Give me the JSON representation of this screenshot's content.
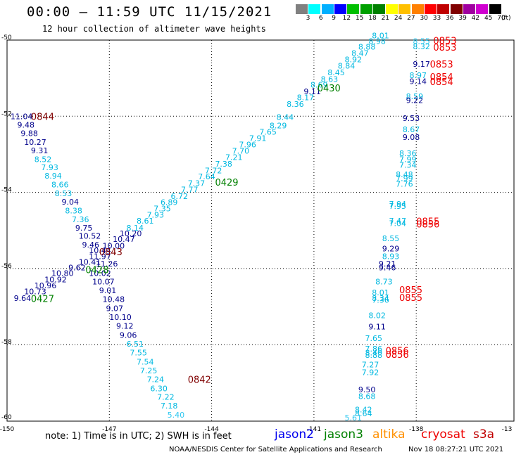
{
  "title": "00:00 – 11:59 UTC 11/15/2021",
  "subtitle": "12 hour collection of altimeter wave heights",
  "legend": {
    "labels": [
      "3",
      "6",
      "9",
      "12",
      "15",
      "18",
      "21",
      "24",
      "27",
      "30",
      "33",
      "36",
      "39",
      "42",
      "45",
      "70"
    ],
    "unit": "(ft)",
    "colors": [
      "#808080",
      "#00ffff",
      "#00b0ff",
      "#0000ff",
      "#00c000",
      "#00a000",
      "#008000",
      "#ffff00",
      "#ffc000",
      "#ff8000",
      "#ff0000",
      "#c00000",
      "#800000",
      "#a000a0",
      "#d000d0",
      "#000000"
    ]
  },
  "axes": {
    "x_ticks": [
      "-150",
      "-147",
      "-144",
      "-141",
      "-138",
      "-13"
    ],
    "y_ticks": [
      "-50",
      "-52",
      "-54",
      "-56",
      "-58",
      "-60"
    ]
  },
  "note": "note: 1) Time is in UTC; 2) SWH is in feet",
  "satellites": [
    {
      "name": "jason2",
      "color": "#0000ee"
    },
    {
      "name": "jason3",
      "color": "#008000"
    },
    {
      "name": "altika",
      "color": "#ff9000"
    },
    {
      "name": "cryosat",
      "color": "#ee0000"
    },
    {
      "name": "s3a",
      "color": "#c00000"
    }
  ],
  "footer": "NOAA/NESDIS Center for Satellite Applications and Research",
  "footer_time": "Nov 18 08:27:21 UTC 2021",
  "colors": {
    "light_blue": "#00b8e0",
    "dark_blue": "#00008b",
    "cyan": "#30c8f0",
    "green": "#008000",
    "red": "#ee0000",
    "maroon": "#800000"
  },
  "readings": [
    {
      "t": "8.01",
      "c": "light_blue",
      "lon": -139.3,
      "lat": -49.95
    },
    {
      "t": "8.98",
      "c": "light_blue",
      "lon": -139.4,
      "lat": -50.1
    },
    {
      "t": "8.88",
      "c": "light_blue",
      "lon": -139.7,
      "lat": -50.25
    },
    {
      "t": "8.47",
      "c": "light_blue",
      "lon": -139.9,
      "lat": -50.42
    },
    {
      "t": "8.92",
      "c": "light_blue",
      "lon": -140.1,
      "lat": -50.58
    },
    {
      "t": "8.84",
      "c": "light_blue",
      "lon": -140.3,
      "lat": -50.75
    },
    {
      "t": "8.45",
      "c": "light_blue",
      "lon": -140.6,
      "lat": -50.92
    },
    {
      "t": "8.63",
      "c": "light_blue",
      "lon": -140.8,
      "lat": -51.1
    },
    {
      "t": "8.69",
      "c": "light_blue",
      "lon": -141.1,
      "lat": -51.25
    },
    {
      "t": "9.11",
      "c": "dark_blue",
      "lon": -141.3,
      "lat": -51.42
    },
    {
      "t": "8.17",
      "c": "light_blue",
      "lon": -141.5,
      "lat": -51.58
    },
    {
      "t": "8.36",
      "c": "light_blue",
      "lon": -141.8,
      "lat": -51.75
    },
    {
      "t": "8.44",
      "c": "light_blue",
      "lon": -142.1,
      "lat": -52.1
    },
    {
      "t": "8.29",
      "c": "light_blue",
      "lon": -142.3,
      "lat": -52.32
    },
    {
      "t": "7.65",
      "c": "light_blue",
      "lon": -142.6,
      "lat": -52.48
    },
    {
      "t": "7.91",
      "c": "light_blue",
      "lon": -142.9,
      "lat": -52.65
    },
    {
      "t": "7.96",
      "c": "light_blue",
      "lon": -143.2,
      "lat": -52.82
    },
    {
      "t": "7.70",
      "c": "light_blue",
      "lon": -143.4,
      "lat": -52.98
    },
    {
      "t": "7.21",
      "c": "light_blue",
      "lon": -143.6,
      "lat": -53.15
    },
    {
      "t": "7.38",
      "c": "light_blue",
      "lon": -143.9,
      "lat": -53.32
    },
    {
      "t": "7.72",
      "c": "light_blue",
      "lon": -144.2,
      "lat": -53.5
    },
    {
      "t": "7.64",
      "c": "light_blue",
      "lon": -144.4,
      "lat": -53.66
    },
    {
      "t": "7.37",
      "c": "light_blue",
      "lon": -144.7,
      "lat": -53.83
    },
    {
      "t": "7.77",
      "c": "light_blue",
      "lon": -144.9,
      "lat": -54.0
    },
    {
      "t": "6.72",
      "c": "light_blue",
      "lon": -145.2,
      "lat": -54.17
    },
    {
      "t": "6.89",
      "c": "light_blue",
      "lon": -145.5,
      "lat": -54.33
    },
    {
      "t": "7.35",
      "c": "light_blue",
      "lon": -145.7,
      "lat": -54.5
    },
    {
      "t": "7.93",
      "c": "light_blue",
      "lon": -145.9,
      "lat": -54.66
    },
    {
      "t": "8.61",
      "c": "light_blue",
      "lon": -146.2,
      "lat": -54.82
    },
    {
      "t": "8.14",
      "c": "light_blue",
      "lon": -146.5,
      "lat": -55.0
    },
    {
      "t": "10.20",
      "c": "dark_blue",
      "lon": -146.7,
      "lat": -55.15
    },
    {
      "t": "10.47",
      "c": "dark_blue",
      "lon": -146.9,
      "lat": -55.3
    },
    {
      "t": "10.00",
      "c": "dark_blue",
      "lon": -147.2,
      "lat": -55.48
    },
    {
      "t": "11.04",
      "c": "dark_blue",
      "lon": -149.9,
      "lat": -52.08
    },
    {
      "t": "9.48",
      "c": "dark_blue",
      "lon": -149.7,
      "lat": -52.3
    },
    {
      "t": "9.88",
      "c": "dark_blue",
      "lon": -149.6,
      "lat": -52.52
    },
    {
      "t": "10.27",
      "c": "dark_blue",
      "lon": -149.5,
      "lat": -52.75
    },
    {
      "t": "9.31",
      "c": "dark_blue",
      "lon": -149.3,
      "lat": -52.97
    },
    {
      "t": "8.52",
      "c": "light_blue",
      "lon": -149.2,
      "lat": -53.2
    },
    {
      "t": "7.93",
      "c": "light_blue",
      "lon": -149.0,
      "lat": -53.42
    },
    {
      "t": "8.94",
      "c": "light_blue",
      "lon": -148.9,
      "lat": -53.64
    },
    {
      "t": "8.66",
      "c": "light_blue",
      "lon": -148.7,
      "lat": -53.87
    },
    {
      "t": "8.53",
      "c": "light_blue",
      "lon": -148.6,
      "lat": -54.1
    },
    {
      "t": "9.04",
      "c": "dark_blue",
      "lon": -148.4,
      "lat": -54.32
    },
    {
      "t": "8.38",
      "c": "light_blue",
      "lon": -148.3,
      "lat": -54.55
    },
    {
      "t": "7.36",
      "c": "light_blue",
      "lon": -148.1,
      "lat": -54.78
    },
    {
      "t": "9.75",
      "c": "dark_blue",
      "lon": -148.0,
      "lat": -55.0
    },
    {
      "t": "10.52",
      "c": "dark_blue",
      "lon": -147.9,
      "lat": -55.22
    },
    {
      "t": "9.46",
      "c": "dark_blue",
      "lon": -147.8,
      "lat": -55.45
    },
    {
      "t": "10.44",
      "c": "dark_blue",
      "lon": -147.6,
      "lat": -55.6
    },
    {
      "t": "11.97",
      "c": "dark_blue",
      "lon": -147.6,
      "lat": -55.75
    },
    {
      "t": "10.41",
      "c": "dark_blue",
      "lon": -147.9,
      "lat": -55.9
    },
    {
      "t": "9.62",
      "c": "dark_blue",
      "lon": -148.2,
      "lat": -56.05
    },
    {
      "t": "10.80",
      "c": "dark_blue",
      "lon": -148.7,
      "lat": -56.2
    },
    {
      "t": "10.92",
      "c": "dark_blue",
      "lon": -148.9,
      "lat": -56.36
    },
    {
      "t": "10.96",
      "c": "dark_blue",
      "lon": -149.2,
      "lat": -56.52
    },
    {
      "t": "10.73",
      "c": "dark_blue",
      "lon": -149.5,
      "lat": -56.68
    },
    {
      "t": "9.64",
      "c": "dark_blue",
      "lon": -149.8,
      "lat": -56.85
    },
    {
      "t": "11.26",
      "c": "dark_blue",
      "lon": -147.4,
      "lat": -55.95
    },
    {
      "t": "10.02",
      "c": "dark_blue",
      "lon": -147.6,
      "lat": -56.2
    },
    {
      "t": "10.07",
      "c": "dark_blue",
      "lon": -147.5,
      "lat": -56.42
    },
    {
      "t": "9.01",
      "c": "dark_blue",
      "lon": -147.3,
      "lat": -56.65
    },
    {
      "t": "10.48",
      "c": "dark_blue",
      "lon": -147.2,
      "lat": -56.88
    },
    {
      "t": "9.07",
      "c": "dark_blue",
      "lon": -147.1,
      "lat": -57.12
    },
    {
      "t": "10.10",
      "c": "dark_blue",
      "lon": -147.0,
      "lat": -57.35
    },
    {
      "t": "9.12",
      "c": "dark_blue",
      "lon": -146.8,
      "lat": -57.58
    },
    {
      "t": "9.06",
      "c": "dark_blue",
      "lon": -146.7,
      "lat": -57.82
    },
    {
      "t": "6.51",
      "c": "light_blue",
      "lon": -146.5,
      "lat": -58.05
    },
    {
      "t": "7.55",
      "c": "light_blue",
      "lon": -146.4,
      "lat": -58.28
    },
    {
      "t": "7.54",
      "c": "light_blue",
      "lon": -146.2,
      "lat": -58.52
    },
    {
      "t": "7.25",
      "c": "light_blue",
      "lon": -146.1,
      "lat": -58.75
    },
    {
      "t": "7.24",
      "c": "light_blue",
      "lon": -145.9,
      "lat": -58.98
    },
    {
      "t": "6.30",
      "c": "light_blue",
      "lon": -145.8,
      "lat": -59.22
    },
    {
      "t": "7.22",
      "c": "light_blue",
      "lon": -145.6,
      "lat": -59.45
    },
    {
      "t": "7.18",
      "c": "light_blue",
      "lon": -145.5,
      "lat": -59.68
    },
    {
      "t": "5.40",
      "c": "cyan",
      "lon": -145.3,
      "lat": -59.92
    },
    {
      "t": "8.55",
      "c": "cyan",
      "lon": -138.1,
      "lat": -50.1
    },
    {
      "t": "8.32",
      "c": "light_blue",
      "lon": -138.1,
      "lat": -50.24
    },
    {
      "t": "9.17",
      "c": "dark_blue",
      "lon": -138.1,
      "lat": -50.7
    },
    {
      "t": "8.97",
      "c": "light_blue",
      "lon": -138.2,
      "lat": -51.0
    },
    {
      "t": "9.14",
      "c": "dark_blue",
      "lon": -138.2,
      "lat": -51.15
    },
    {
      "t": "8.59",
      "c": "light_blue",
      "lon": -138.3,
      "lat": -51.55
    },
    {
      "t": "9.22",
      "c": "dark_blue",
      "lon": -138.3,
      "lat": -51.65
    },
    {
      "t": "9.53",
      "c": "dark_blue",
      "lon": -138.4,
      "lat": -52.12
    },
    {
      "t": "8.67",
      "c": "light_blue",
      "lon": -138.4,
      "lat": -52.42
    },
    {
      "t": "9.08",
      "c": "dark_blue",
      "lon": -138.4,
      "lat": -52.62
    },
    {
      "t": "8.36",
      "c": "light_blue",
      "lon": -138.5,
      "lat": -53.05
    },
    {
      "t": "7.99",
      "c": "light_blue",
      "lon": -138.5,
      "lat": -53.2
    },
    {
      "t": "7.34",
      "c": "light_blue",
      "lon": -138.5,
      "lat": -53.35
    },
    {
      "t": "8.48",
      "c": "light_blue",
      "lon": -138.6,
      "lat": -53.6
    },
    {
      "t": "7.99",
      "c": "light_blue",
      "lon": -138.6,
      "lat": -53.7
    },
    {
      "t": "7.76",
      "c": "light_blue",
      "lon": -138.6,
      "lat": -53.85
    },
    {
      "t": "7.94",
      "c": "light_blue",
      "lon": -138.8,
      "lat": -54.38
    },
    {
      "t": "7.95",
      "c": "light_blue",
      "lon": -138.8,
      "lat": -54.43
    },
    {
      "t": "7.47",
      "c": "light_blue",
      "lon": -138.8,
      "lat": -54.82
    },
    {
      "t": "7.04",
      "c": "light_blue",
      "lon": -138.8,
      "lat": -54.88
    },
    {
      "t": "8.55",
      "c": "light_blue",
      "lon": -139.0,
      "lat": -55.28
    },
    {
      "t": "9.29",
      "c": "dark_blue",
      "lon": -139.0,
      "lat": -55.55
    },
    {
      "t": "8.93",
      "c": "light_blue",
      "lon": -139.0,
      "lat": -55.75
    },
    {
      "t": "9.21",
      "c": "dark_blue",
      "lon": -139.1,
      "lat": -55.95
    },
    {
      "t": "9.46",
      "c": "dark_blue",
      "lon": -139.1,
      "lat": -56.05
    },
    {
      "t": "8.73",
      "c": "light_blue",
      "lon": -139.2,
      "lat": -56.42
    },
    {
      "t": "8.01",
      "c": "light_blue",
      "lon": -139.3,
      "lat": -56.7
    },
    {
      "t": "8.34",
      "c": "light_blue",
      "lon": -139.3,
      "lat": -56.85
    },
    {
      "t": "7.36",
      "c": "light_blue",
      "lon": -139.3,
      "lat": -56.9
    },
    {
      "t": "8.02",
      "c": "light_blue",
      "lon": -139.4,
      "lat": -57.3
    },
    {
      "t": "9.11",
      "c": "dark_blue",
      "lon": -139.4,
      "lat": -57.6
    },
    {
      "t": "7.65",
      "c": "light_blue",
      "lon": -139.5,
      "lat": -57.9
    },
    {
      "t": "7.86",
      "c": "light_blue",
      "lon": -139.5,
      "lat": -58.18
    },
    {
      "t": "8.40",
      "c": "light_blue",
      "lon": -139.5,
      "lat": -58.28
    },
    {
      "t": "8.88",
      "c": "light_blue",
      "lon": -139.5,
      "lat": -58.35
    },
    {
      "t": "7.27",
      "c": "light_blue",
      "lon": -139.6,
      "lat": -58.6
    },
    {
      "t": "7.92",
      "c": "light_blue",
      "lon": -139.6,
      "lat": -58.8
    },
    {
      "t": "9.50",
      "c": "dark_blue",
      "lon": -139.7,
      "lat": -59.25
    },
    {
      "t": "8.68",
      "c": "light_blue",
      "lon": -139.7,
      "lat": -59.43
    },
    {
      "t": "8.42",
      "c": "light_blue",
      "lon": -139.8,
      "lat": -59.78
    },
    {
      "t": "8.64",
      "c": "light_blue",
      "lon": -139.8,
      "lat": -59.88
    },
    {
      "t": "5.61",
      "c": "cyan",
      "lon": -140.1,
      "lat": -60.45
    }
  ],
  "markers": [
    {
      "t": "0844",
      "c": "maroon",
      "lon": -149.3,
      "lat": -52.1
    },
    {
      "t": "0843",
      "c": "maroon",
      "lon": -147.3,
      "lat": -55.65
    },
    {
      "t": "0842",
      "c": "maroon",
      "lon": -144.7,
      "lat": -59.0
    },
    {
      "t": "0427",
      "c": "green",
      "lon": -149.3,
      "lat": -56.88
    },
    {
      "t": "0428",
      "c": "green",
      "lon": -147.7,
      "lat": -56.12
    },
    {
      "t": "0429",
      "c": "green",
      "lon": -143.9,
      "lat": -53.82
    },
    {
      "t": "0430",
      "c": "green",
      "lon": -140.9,
      "lat": -51.35
    },
    {
      "t": "0853",
      "c": "red",
      "lon": -137.5,
      "lat": -50.1
    },
    {
      "t": "0853",
      "c": "red",
      "lon": -137.5,
      "lat": -50.28
    },
    {
      "t": "0853",
      "c": "red",
      "lon": -137.6,
      "lat": -50.72
    },
    {
      "t": "0854",
      "c": "red",
      "lon": -137.6,
      "lat": -51.05
    },
    {
      "t": "0854",
      "c": "red",
      "lon": -137.6,
      "lat": -51.18
    },
    {
      "t": "0855",
      "c": "red",
      "lon": -138.0,
      "lat": -54.85
    },
    {
      "t": "0856",
      "c": "red",
      "lon": -138.0,
      "lat": -54.92
    },
    {
      "t": "0855",
      "c": "red",
      "lon": -138.5,
      "lat": -56.65
    },
    {
      "t": "0855",
      "c": "red",
      "lon": -138.5,
      "lat": -56.85
    },
    {
      "t": "0856",
      "c": "red",
      "lon": -138.9,
      "lat": -58.25
    },
    {
      "t": "0856",
      "c": "red",
      "lon": -138.9,
      "lat": -58.35
    }
  ]
}
